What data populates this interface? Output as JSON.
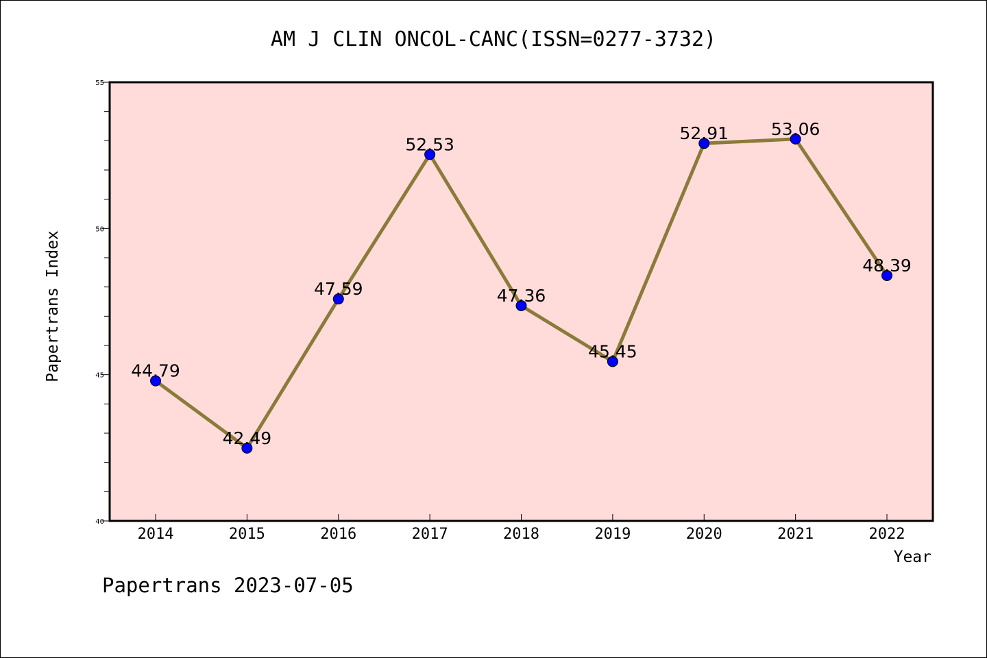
{
  "chart_data": {
    "type": "line",
    "title": "AM J CLIN ONCOL-CANC(ISSN=0277-3732)",
    "xlabel": "Year",
    "ylabel": "Papertrans Index",
    "categories": [
      "2014",
      "2015",
      "2016",
      "2017",
      "2018",
      "2019",
      "2020",
      "2021",
      "2022"
    ],
    "series": [
      {
        "values": [
          44.79,
          42.49,
          47.59,
          52.53,
          47.36,
          45.45,
          52.91,
          53.06,
          48.39
        ],
        "labels": [
          "44.79",
          "42.49",
          "47.59",
          "52.53",
          "47.36",
          "45.45",
          "52.91",
          "53.06",
          "48.39"
        ]
      }
    ],
    "ylim": [
      40,
      55
    ],
    "yticks": [
      "40",
      "45",
      "50",
      "55"
    ],
    "grid": false,
    "legend": "none",
    "colors": {
      "plot_background": "#ffdcda",
      "line": "#8b7b3b",
      "marker": "#0000ff"
    }
  },
  "footer": "Papertrans 2023-07-05"
}
